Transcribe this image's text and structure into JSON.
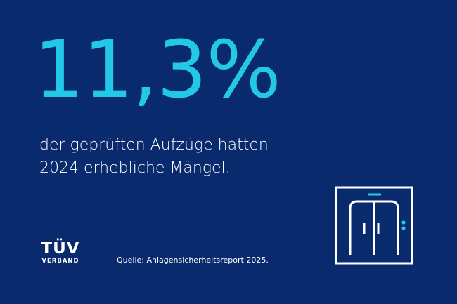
{
  "headline": {
    "value": "11,3%"
  },
  "description": {
    "line1": "der geprüften Aufzüge hatten",
    "line2": "2024 erhebliche Mängel."
  },
  "logo": {
    "brand": "TÜV",
    "sub": "VERBAND"
  },
  "source": "Quelle: Anlagensicherheitsreport 2025.",
  "icons": {
    "elevator": "elevator-icon"
  },
  "colors": {
    "background": "#0a2a6e",
    "accent": "#22c8e6",
    "text": "#ffffff"
  }
}
